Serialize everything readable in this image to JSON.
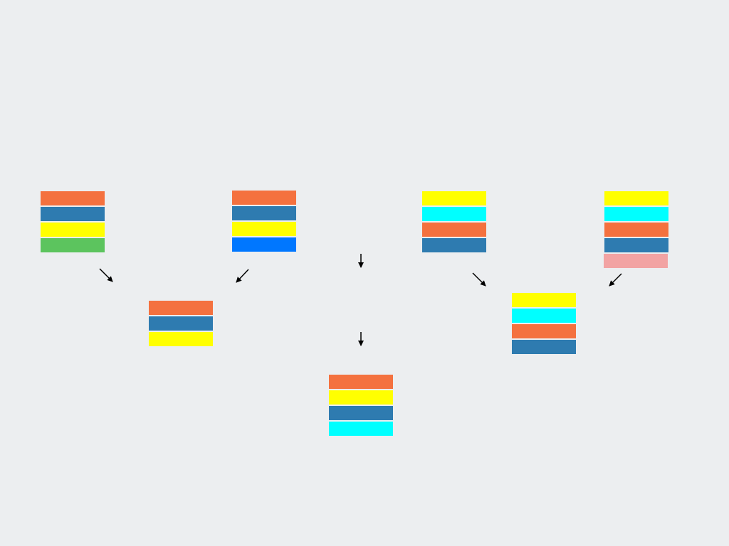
{
  "colors": {
    "background": "#eceef0",
    "orange": "#f4713f",
    "steel_blue": "#2e7bb0",
    "yellow": "#ffff00",
    "green": "#5cc45e",
    "bright_blue": "#0077ff",
    "cyan": "#00ffff",
    "pink": "#f2a3a3",
    "arrow": "#000000"
  },
  "stacks": [
    {
      "id": "stack-a",
      "bars": [
        "orange",
        "steel_blue",
        "yellow",
        "green"
      ]
    },
    {
      "id": "stack-b",
      "bars": [
        "orange",
        "steel_blue",
        "yellow",
        "bright_blue"
      ]
    },
    {
      "id": "stack-c",
      "bars": [
        "yellow",
        "cyan",
        "orange",
        "steel_blue"
      ]
    },
    {
      "id": "stack-d",
      "bars": [
        "yellow",
        "cyan",
        "orange",
        "steel_blue",
        "pink"
      ]
    },
    {
      "id": "stack-ab",
      "bars": [
        "orange",
        "steel_blue",
        "yellow"
      ]
    },
    {
      "id": "stack-cd",
      "bars": [
        "yellow",
        "cyan",
        "orange",
        "steel_blue"
      ]
    },
    {
      "id": "stack-result",
      "bars": [
        "orange",
        "yellow",
        "steel_blue",
        "cyan"
      ]
    }
  ],
  "arrows": [
    {
      "id": "arrow-a-to-ab",
      "icon": "arrow-down-right-icon"
    },
    {
      "id": "arrow-b-to-ab",
      "icon": "arrow-down-left-icon"
    },
    {
      "id": "arrow-center-upper",
      "icon": "arrow-down-icon"
    },
    {
      "id": "arrow-c-to-cd",
      "icon": "arrow-down-right-icon"
    },
    {
      "id": "arrow-d-to-cd",
      "icon": "arrow-down-left-icon"
    },
    {
      "id": "arrow-center-lower",
      "icon": "arrow-down-icon"
    }
  ]
}
